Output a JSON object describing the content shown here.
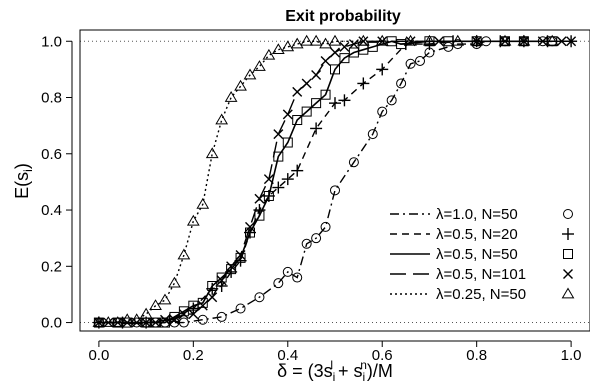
{
  "chart_data": {
    "type": "line",
    "title": "Exit probability",
    "xlabel": "δ = (3s_i^l + s_i^n) / M",
    "ylabel": "E(s_i)",
    "xlim": [
      -0.04,
      1.04
    ],
    "ylim": [
      -0.03,
      1.04
    ],
    "xticks": [
      "0.0",
      "0.2",
      "0.4",
      "0.6",
      "0.8",
      "1.0"
    ],
    "yticks": [
      "0.0",
      "0.2",
      "0.4",
      "0.6",
      "0.8",
      "1.0"
    ],
    "reference_lines": [
      0.0,
      1.0
    ],
    "legend_position": "bottom-right",
    "series": [
      {
        "name": "λ=1.0, N=50",
        "marker": "circle",
        "line_style": "dashdot",
        "points": [
          [
            0.0,
            0.0
          ],
          [
            0.04,
            0.0
          ],
          [
            0.08,
            0.0
          ],
          [
            0.1,
            0.0
          ],
          [
            0.12,
            0.0
          ],
          [
            0.14,
            0.0
          ],
          [
            0.16,
            0.0
          ],
          [
            0.18,
            0.0
          ],
          [
            0.22,
            0.01
          ],
          [
            0.26,
            0.02
          ],
          [
            0.3,
            0.05
          ],
          [
            0.34,
            0.09
          ],
          [
            0.38,
            0.14
          ],
          [
            0.4,
            0.18
          ],
          [
            0.42,
            0.16
          ],
          [
            0.44,
            0.28
          ],
          [
            0.46,
            0.3
          ],
          [
            0.48,
            0.34
          ],
          [
            0.5,
            0.47
          ],
          [
            0.54,
            0.57
          ],
          [
            0.58,
            0.67
          ],
          [
            0.6,
            0.75
          ],
          [
            0.62,
            0.79
          ],
          [
            0.64,
            0.85
          ],
          [
            0.66,
            0.92
          ],
          [
            0.68,
            0.93
          ],
          [
            0.7,
            0.96
          ],
          [
            0.74,
            0.98
          ],
          [
            0.76,
            0.99
          ],
          [
            0.8,
            0.99
          ],
          [
            0.82,
            1.0
          ],
          [
            0.86,
            1.0
          ],
          [
            0.9,
            1.0
          ],
          [
            0.94,
            1.0
          ],
          [
            0.96,
            1.0
          ]
        ]
      },
      {
        "name": "λ=0.5, N=20",
        "marker": "plus",
        "line_style": "dashed",
        "points": [
          [
            0.0,
            0.0
          ],
          [
            0.05,
            0.0
          ],
          [
            0.1,
            0.0
          ],
          [
            0.15,
            0.01
          ],
          [
            0.2,
            0.05
          ],
          [
            0.24,
            0.12
          ],
          [
            0.26,
            0.13
          ],
          [
            0.28,
            0.18
          ],
          [
            0.3,
            0.22
          ],
          [
            0.32,
            0.32
          ],
          [
            0.34,
            0.4
          ],
          [
            0.36,
            0.45
          ],
          [
            0.38,
            0.48
          ],
          [
            0.4,
            0.51
          ],
          [
            0.42,
            0.54
          ],
          [
            0.46,
            0.69
          ],
          [
            0.5,
            0.78
          ],
          [
            0.52,
            0.79
          ],
          [
            0.56,
            0.85
          ],
          [
            0.6,
            0.9
          ],
          [
            0.65,
            0.99
          ],
          [
            0.7,
            0.99
          ],
          [
            0.75,
            1.0
          ],
          [
            0.8,
            1.0
          ],
          [
            0.85,
            1.0
          ],
          [
            0.9,
            1.0
          ],
          [
            0.95,
            1.0
          ],
          [
            1.0,
            1.0
          ]
        ]
      },
      {
        "name": "λ=0.5, N=50",
        "marker": "square",
        "line_style": "solid",
        "points": [
          [
            0.0,
            0.0
          ],
          [
            0.04,
            0.0
          ],
          [
            0.06,
            0.0
          ],
          [
            0.1,
            0.0
          ],
          [
            0.12,
            0.0
          ],
          [
            0.14,
            0.0
          ],
          [
            0.16,
            0.02
          ],
          [
            0.18,
            0.04
          ],
          [
            0.2,
            0.06
          ],
          [
            0.22,
            0.07
          ],
          [
            0.24,
            0.13
          ],
          [
            0.26,
            0.16
          ],
          [
            0.28,
            0.19
          ],
          [
            0.3,
            0.23
          ],
          [
            0.32,
            0.32
          ],
          [
            0.34,
            0.38
          ],
          [
            0.36,
            0.45
          ],
          [
            0.38,
            0.59
          ],
          [
            0.4,
            0.64
          ],
          [
            0.42,
            0.72
          ],
          [
            0.44,
            0.75
          ],
          [
            0.46,
            0.78
          ],
          [
            0.48,
            0.81
          ],
          [
            0.5,
            0.9
          ],
          [
            0.52,
            0.94
          ],
          [
            0.54,
            0.96
          ],
          [
            0.56,
            0.97
          ],
          [
            0.58,
            0.98
          ],
          [
            0.62,
            1.0
          ],
          [
            0.64,
            0.99
          ],
          [
            0.7,
            1.0
          ],
          [
            0.74,
            1.0
          ],
          [
            0.8,
            1.0
          ],
          [
            0.86,
            1.0
          ],
          [
            0.9,
            1.0
          ],
          [
            0.96,
            1.0
          ]
        ]
      },
      {
        "name": "λ=0.5, N=101",
        "marker": "cross",
        "line_style": "longdash",
        "points": [
          [
            0.0,
            0.0
          ],
          [
            0.02,
            0.0
          ],
          [
            0.04,
            0.0
          ],
          [
            0.06,
            0.0
          ],
          [
            0.08,
            0.0
          ],
          [
            0.1,
            0.0
          ],
          [
            0.12,
            0.0
          ],
          [
            0.14,
            0.01
          ],
          [
            0.16,
            0.01
          ],
          [
            0.18,
            0.03
          ],
          [
            0.2,
            0.03
          ],
          [
            0.22,
            0.06
          ],
          [
            0.24,
            0.09
          ],
          [
            0.26,
            0.15
          ],
          [
            0.28,
            0.2
          ],
          [
            0.3,
            0.24
          ],
          [
            0.32,
            0.34
          ],
          [
            0.34,
            0.44
          ],
          [
            0.36,
            0.51
          ],
          [
            0.38,
            0.67
          ],
          [
            0.4,
            0.74
          ],
          [
            0.42,
            0.82
          ],
          [
            0.44,
            0.85
          ],
          [
            0.46,
            0.88
          ],
          [
            0.48,
            0.93
          ],
          [
            0.5,
            0.96
          ],
          [
            0.52,
            0.98
          ],
          [
            0.54,
            0.99
          ],
          [
            0.56,
            1.0
          ],
          [
            0.6,
            1.0
          ],
          [
            0.66,
            1.0
          ],
          [
            0.72,
            1.0
          ],
          [
            0.8,
            1.0
          ],
          [
            0.86,
            1.0
          ],
          [
            0.9,
            1.0
          ],
          [
            0.94,
            1.0
          ],
          [
            0.98,
            1.0
          ],
          [
            1.0,
            1.0
          ]
        ]
      },
      {
        "name": "λ=0.25, N=50",
        "marker": "triangle",
        "line_style": "dotted",
        "points": [
          [
            0.0,
            0.0
          ],
          [
            0.02,
            0.0
          ],
          [
            0.04,
            0.0
          ],
          [
            0.06,
            0.01
          ],
          [
            0.08,
            0.01
          ],
          [
            0.1,
            0.03
          ],
          [
            0.12,
            0.06
          ],
          [
            0.14,
            0.08
          ],
          [
            0.16,
            0.14
          ],
          [
            0.18,
            0.24
          ],
          [
            0.2,
            0.36
          ],
          [
            0.22,
            0.42
          ],
          [
            0.24,
            0.6
          ],
          [
            0.26,
            0.72
          ],
          [
            0.28,
            0.8
          ],
          [
            0.3,
            0.84
          ],
          [
            0.32,
            0.88
          ],
          [
            0.34,
            0.91
          ],
          [
            0.36,
            0.95
          ],
          [
            0.38,
            0.97
          ],
          [
            0.4,
            0.98
          ],
          [
            0.42,
            0.99
          ],
          [
            0.44,
            1.0
          ],
          [
            0.46,
            1.0
          ],
          [
            0.48,
            0.99
          ],
          [
            0.5,
            1.0
          ],
          [
            0.56,
            1.0
          ],
          [
            0.6,
            1.0
          ],
          [
            0.66,
            1.0
          ],
          [
            0.7,
            1.0
          ],
          [
            0.76,
            1.0
          ],
          [
            0.8,
            1.0
          ],
          [
            0.86,
            1.0
          ],
          [
            0.9,
            1.0
          ],
          [
            0.96,
            1.0
          ]
        ]
      }
    ]
  }
}
